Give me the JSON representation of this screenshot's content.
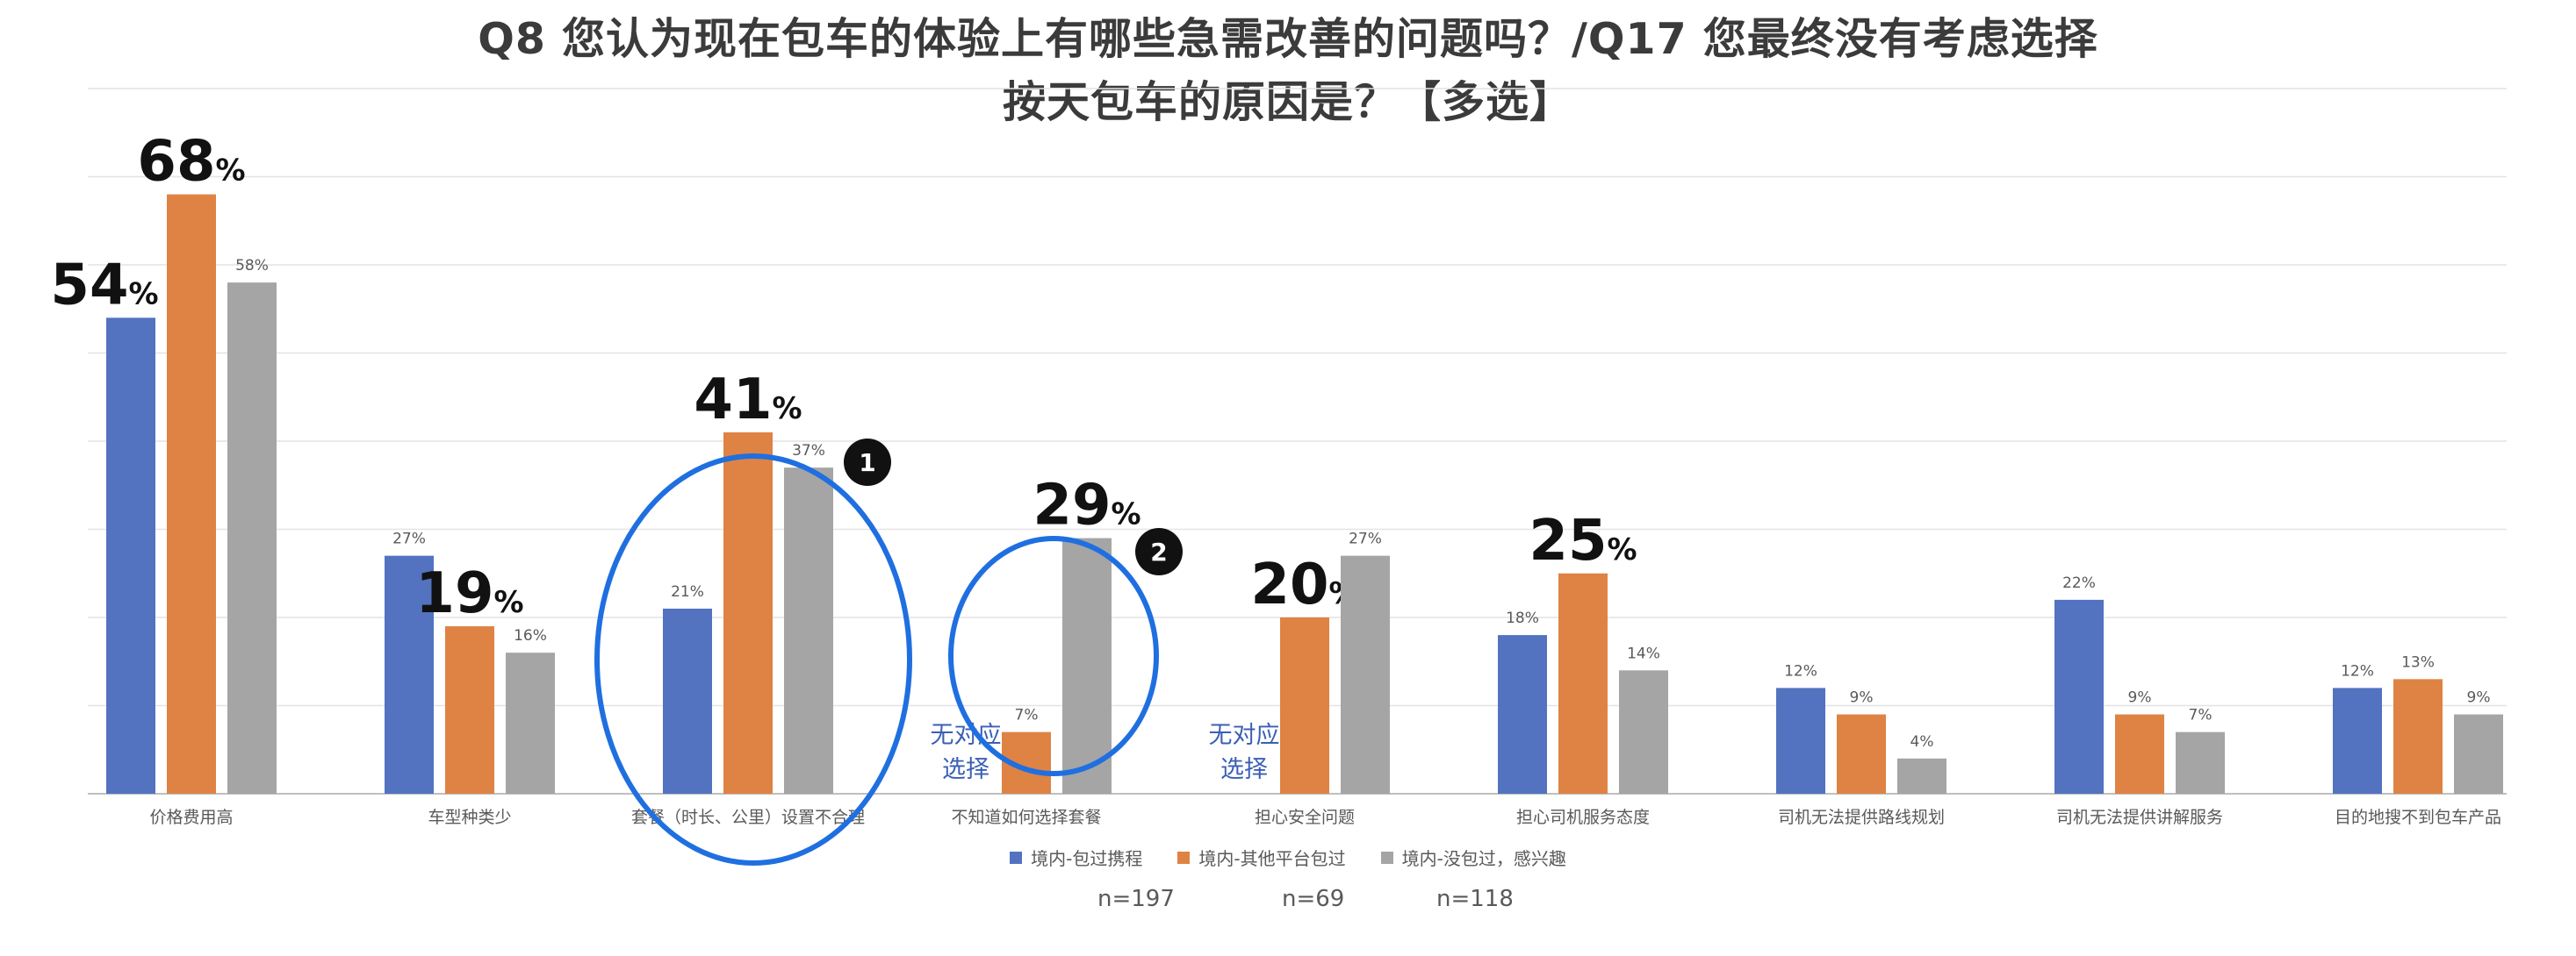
{
  "title": {
    "line1": "Q8 您认为现在包车的体验上有哪些急需改善的问题吗？/Q17 您最终没有考虑选择",
    "line2": "按天包车的原因是？【多选】"
  },
  "colors": {
    "blue": "#5372C0",
    "orange": "#DE8344",
    "gray": "#A5A5A5",
    "circle": "#1F6FE0",
    "no_option_text": "#3A5FB5"
  },
  "chart_data": {
    "type": "bar",
    "ylim": [
      0,
      80
    ],
    "grid": true,
    "legend_position": "bottom",
    "categories": [
      "价格费用高",
      "车型种类少",
      "套餐（时长、公里）设置不合理",
      "不知道如何选择套餐",
      "担心安全问题",
      "担心司机服务态度",
      "司机无法提供路线规划",
      "司机无法提供讲解服务",
      "目的地搜不到包车产品"
    ],
    "series": [
      {
        "name": "境内-包过携程",
        "values": [
          54,
          27,
          21,
          null,
          null,
          18,
          12,
          22,
          12
        ],
        "value_labels": [
          "54",
          "27%",
          "21%",
          "",
          "",
          "18%",
          "12%",
          "22%",
          "12%"
        ],
        "big_label": [
          true,
          false,
          false,
          false,
          false,
          false,
          false,
          false,
          false
        ]
      },
      {
        "name": "境内-其他平台包过",
        "values": [
          68,
          19,
          41,
          7,
          20,
          25,
          9,
          9,
          13
        ],
        "value_labels": [
          "68",
          "19",
          "41",
          "7%",
          "20",
          "25",
          "9%",
          "9%",
          "13%"
        ],
        "big_label": [
          true,
          true,
          true,
          false,
          true,
          true,
          false,
          false,
          false
        ]
      },
      {
        "name": "境内-没包过，感兴趣",
        "values": [
          58,
          16,
          37,
          29,
          27,
          14,
          4,
          7,
          9
        ],
        "value_labels": [
          "58%",
          "16%",
          "37%",
          "29",
          "27%",
          "14%",
          "4%",
          "7%",
          "9%"
        ],
        "big_label": [
          false,
          false,
          false,
          true,
          false,
          false,
          false,
          false,
          false
        ]
      }
    ],
    "no_option_label": [
      "无对应",
      "选择"
    ],
    "no_option_cells": [
      [
        3,
        0
      ],
      [
        4,
        0
      ]
    ],
    "percent_suffix": "%",
    "circle_badges": [
      "1",
      "2"
    ]
  },
  "sample_sizes": [
    "n=197",
    "n=69",
    "n=118"
  ]
}
